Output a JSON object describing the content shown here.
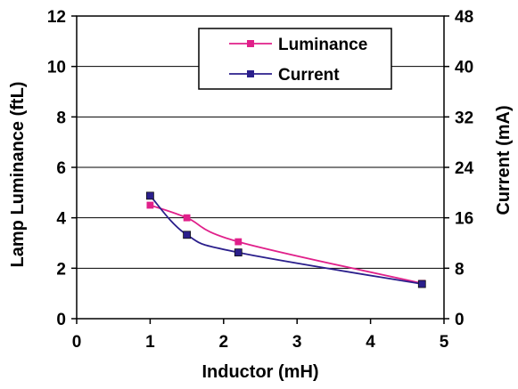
{
  "chart_data": {
    "type": "line",
    "title": "",
    "xlabel": "Inductor (mH)",
    "ylabel": "Lamp Luminance (ftL)",
    "y2label": "Current (mA)",
    "xlim": [
      0,
      5
    ],
    "ylim": [
      0,
      12
    ],
    "y2lim": [
      0,
      48
    ],
    "x_ticks": [
      "0",
      "1",
      "2",
      "3",
      "4",
      "5"
    ],
    "y_ticks": [
      "0",
      "2",
      "4",
      "6",
      "8",
      "10",
      "12"
    ],
    "y2_ticks": [
      "0",
      "8",
      "16",
      "24",
      "32",
      "40",
      "48"
    ],
    "grid": "horizontal",
    "legend_position": "top-right",
    "series": [
      {
        "name": "Luminance",
        "axis": "left",
        "color": "#e0208a",
        "marker": "square",
        "x": [
          1.0,
          1.5,
          2.2,
          4.7
        ],
        "y": [
          4.5,
          4.0,
          3.05,
          1.4
        ]
      },
      {
        "name": "Current",
        "axis": "right",
        "color": "#2b1f8c",
        "marker": "square",
        "x": [
          1.0,
          1.5,
          2.2,
          4.7
        ],
        "y": [
          19.5,
          13.3,
          10.5,
          5.5
        ]
      }
    ]
  }
}
